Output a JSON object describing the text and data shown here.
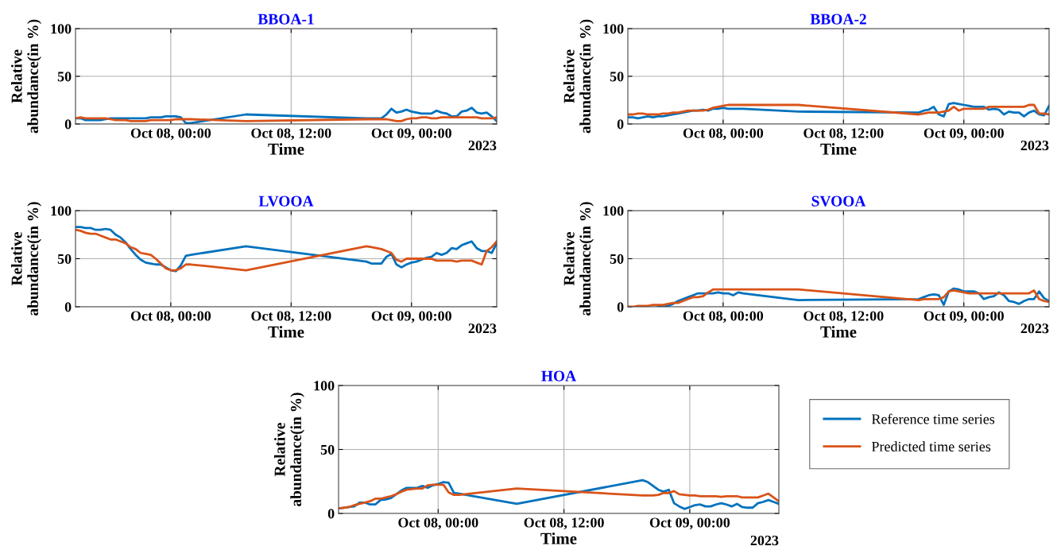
{
  "chart_data": [
    {
      "type": "line",
      "title": "BBOA-1",
      "xlabel": "Time",
      "ylabel": "Relative\nabundance(in %)",
      "annotations": [
        "2023"
      ],
      "x": [
        "2023-10-07T14:30",
        "2023-10-07T15:00",
        "2023-10-07T15:30",
        "2023-10-07T16:00",
        "2023-10-07T16:30",
        "2023-10-07T17:00",
        "2023-10-07T17:30",
        "2023-10-07T18:00",
        "2023-10-07T18:30",
        "2023-10-07T19:00",
        "2023-10-07T19:30",
        "2023-10-07T20:00",
        "2023-10-07T20:30",
        "2023-10-07T21:00",
        "2023-10-07T21:30",
        "2023-10-07T22:00",
        "2023-10-07T22:30",
        "2023-10-07T23:00",
        "2023-10-07T23:30",
        "2023-10-08T00:00",
        "2023-10-08T00:30",
        "2023-10-08T01:00",
        "2023-10-08T01:30",
        "2023-10-08T02:00",
        "2023-10-08T07:30",
        "2023-10-08T19:30",
        "2023-10-08T20:00",
        "2023-10-08T20:30",
        "2023-10-08T21:00",
        "2023-10-08T21:30",
        "2023-10-08T22:00",
        "2023-10-08T22:30",
        "2023-10-08T23:00",
        "2023-10-08T23:30",
        "2023-10-09T00:00",
        "2023-10-09T00:30",
        "2023-10-09T01:00",
        "2023-10-09T01:30",
        "2023-10-09T02:00",
        "2023-10-09T02:30",
        "2023-10-09T03:00",
        "2023-10-09T03:30",
        "2023-10-09T04:00",
        "2023-10-09T04:30",
        "2023-10-09T05:00",
        "2023-10-09T05:30",
        "2023-10-09T06:00",
        "2023-10-09T06:30",
        "2023-10-09T07:00",
        "2023-10-09T07:30",
        "2023-10-09T08:00",
        "2023-10-09T08:30"
      ],
      "series": [
        {
          "color": "#0072bd",
          "values": [
            6,
            6,
            4,
            4,
            4,
            4,
            5,
            6,
            6,
            6,
            6,
            6,
            6,
            6,
            6,
            7,
            7,
            7,
            8,
            8,
            8,
            7,
            1,
            1,
            10,
            6,
            6,
            6,
            6,
            10,
            16,
            12,
            13,
            15,
            13,
            12,
            11,
            11,
            11,
            14,
            12,
            11,
            8,
            8,
            13,
            14,
            17,
            12,
            11,
            12,
            8,
            3
          ]
        },
        {
          "color": "#d95319",
          "values": [
            6,
            7,
            6,
            6,
            6,
            6,
            6,
            5,
            4,
            4,
            4,
            3,
            3,
            3,
            3,
            4,
            4,
            4,
            4,
            4,
            5,
            5,
            5,
            5,
            3,
            5,
            5,
            5,
            5,
            5,
            4,
            3,
            3,
            5,
            6,
            6,
            7,
            7,
            6,
            6,
            7,
            7,
            7,
            7,
            7,
            7,
            7,
            7,
            6,
            6,
            6,
            7
          ]
        }
      ],
      "xlim": [
        "2023-10-07T14:30",
        "2023-10-09T08:30"
      ],
      "xticks": [
        {
          "value": "2023-10-08T00:00",
          "label": "Oct 08, 00:00"
        },
        {
          "value": "2023-10-08T12:00",
          "label": "Oct 08, 12:00"
        },
        {
          "value": "2023-10-09T00:00",
          "label": "Oct 09, 00:00"
        }
      ],
      "ylim": [
        0,
        100
      ],
      "yticks": [
        0,
        50,
        100
      ],
      "grid": true
    },
    {
      "type": "line",
      "title": "BBOA-2",
      "xlabel": "Time",
      "ylabel": "Relative\nabundance(in %)",
      "annotations": [
        "2023"
      ],
      "x": [
        "2023-10-07T14:30",
        "2023-10-07T15:00",
        "2023-10-07T15:30",
        "2023-10-07T16:00",
        "2023-10-07T16:30",
        "2023-10-07T17:00",
        "2023-10-07T17:30",
        "2023-10-07T18:00",
        "2023-10-07T18:30",
        "2023-10-07T19:00",
        "2023-10-07T19:30",
        "2023-10-07T20:00",
        "2023-10-07T20:30",
        "2023-10-07T21:00",
        "2023-10-07T21:30",
        "2023-10-07T22:00",
        "2023-10-07T22:30",
        "2023-10-07T23:00",
        "2023-10-07T23:30",
        "2023-10-08T00:00",
        "2023-10-08T00:30",
        "2023-10-08T01:00",
        "2023-10-08T01:30",
        "2023-10-08T02:00",
        "2023-10-08T07:30",
        "2023-10-08T19:30",
        "2023-10-08T20:00",
        "2023-10-08T20:30",
        "2023-10-08T21:00",
        "2023-10-08T21:30",
        "2023-10-08T22:00",
        "2023-10-08T22:30",
        "2023-10-08T23:00",
        "2023-10-08T23:30",
        "2023-10-09T00:00",
        "2023-10-09T00:30",
        "2023-10-09T01:00",
        "2023-10-09T01:30",
        "2023-10-09T02:00",
        "2023-10-09T02:30",
        "2023-10-09T03:00",
        "2023-10-09T03:30",
        "2023-10-09T04:00",
        "2023-10-09T04:30",
        "2023-10-09T05:00",
        "2023-10-09T05:30",
        "2023-10-09T06:00",
        "2023-10-09T06:30",
        "2023-10-09T07:00",
        "2023-10-09T07:30",
        "2023-10-09T08:00",
        "2023-10-09T08:30"
      ],
      "series": [
        {
          "color": "#0072bd",
          "values": [
            7,
            7,
            6,
            7,
            8,
            7,
            8,
            8,
            9,
            10,
            11,
            12,
            13,
            14,
            14,
            15,
            14,
            16,
            16,
            17,
            16,
            16,
            16,
            16,
            13,
            12,
            14,
            15,
            18,
            10,
            8,
            21,
            22,
            21,
            20,
            19,
            18,
            18,
            18,
            15,
            16,
            15,
            10,
            13,
            12,
            12,
            8,
            12,
            14,
            10,
            9,
            19
          ]
        },
        {
          "color": "#d95319",
          "values": [
            10,
            10,
            11,
            11,
            10,
            10,
            10,
            11,
            11,
            12,
            12,
            13,
            14,
            14,
            14,
            14,
            15,
            17,
            18,
            19,
            20,
            20,
            20,
            20,
            20,
            10,
            11,
            12,
            12,
            12,
            13,
            14,
            18,
            14,
            16,
            16,
            16,
            16,
            16,
            18,
            18,
            18,
            18,
            18,
            18,
            18,
            18,
            20,
            20,
            11,
            11,
            10
          ]
        }
      ],
      "xlim": [
        "2023-10-07T14:30",
        "2023-10-09T08:30"
      ],
      "xticks": [
        {
          "value": "2023-10-08T00:00",
          "label": "Oct 08, 00:00"
        },
        {
          "value": "2023-10-08T12:00",
          "label": "Oct 08, 12:00"
        },
        {
          "value": "2023-10-09T00:00",
          "label": "Oct 09, 00:00"
        }
      ],
      "ylim": [
        0,
        100
      ],
      "yticks": [
        0,
        50,
        100
      ],
      "grid": true
    },
    {
      "type": "line",
      "title": "LVOOA",
      "xlabel": "Time",
      "ylabel": "Relative\nabundance(in %)",
      "annotations": [
        "2023"
      ],
      "x": [
        "2023-10-07T14:30",
        "2023-10-07T15:00",
        "2023-10-07T15:30",
        "2023-10-07T16:00",
        "2023-10-07T16:30",
        "2023-10-07T17:00",
        "2023-10-07T17:30",
        "2023-10-07T18:00",
        "2023-10-07T18:30",
        "2023-10-07T19:00",
        "2023-10-07T19:30",
        "2023-10-07T20:00",
        "2023-10-07T20:30",
        "2023-10-07T21:00",
        "2023-10-07T21:30",
        "2023-10-07T22:00",
        "2023-10-07T22:30",
        "2023-10-07T23:00",
        "2023-10-07T23:30",
        "2023-10-08T00:00",
        "2023-10-08T00:30",
        "2023-10-08T01:00",
        "2023-10-08T01:30",
        "2023-10-08T02:00",
        "2023-10-08T07:30",
        "2023-10-08T19:30",
        "2023-10-08T20:00",
        "2023-10-08T20:30",
        "2023-10-08T21:00",
        "2023-10-08T21:30",
        "2023-10-08T22:00",
        "2023-10-08T22:30",
        "2023-10-08T23:00",
        "2023-10-08T23:30",
        "2023-10-09T00:00",
        "2023-10-09T00:30",
        "2023-10-09T01:00",
        "2023-10-09T01:30",
        "2023-10-09T02:00",
        "2023-10-09T02:30",
        "2023-10-09T03:00",
        "2023-10-09T03:30",
        "2023-10-09T04:00",
        "2023-10-09T04:30",
        "2023-10-09T05:00",
        "2023-10-09T05:30",
        "2023-10-09T06:00",
        "2023-10-09T06:30",
        "2023-10-09T07:00",
        "2023-10-09T07:30",
        "2023-10-09T08:00",
        "2023-10-09T08:30"
      ],
      "series": [
        {
          "color": "#0072bd",
          "values": [
            83,
            83,
            82,
            82,
            80,
            80,
            81,
            80,
            75,
            72,
            67,
            60,
            54,
            49,
            46,
            45,
            44,
            44,
            41,
            38,
            37,
            43,
            53,
            54,
            63,
            47,
            45,
            45,
            45,
            52,
            55,
            44,
            41,
            44,
            46,
            47,
            49,
            51,
            52,
            56,
            54,
            56,
            61,
            60,
            64,
            66,
            68,
            61,
            58,
            58,
            56,
            66
          ]
        },
        {
          "color": "#d95319",
          "values": [
            80,
            79,
            77,
            76,
            76,
            74,
            72,
            70,
            70,
            68,
            66,
            62,
            60,
            56,
            55,
            54,
            50,
            45,
            40,
            38,
            38,
            40,
            44,
            44,
            38,
            63,
            62,
            61,
            60,
            58,
            56,
            49,
            47,
            50,
            50,
            50,
            50,
            50,
            50,
            48,
            48,
            48,
            48,
            47,
            48,
            48,
            48,
            46,
            44,
            58,
            62,
            68
          ]
        }
      ],
      "xlim": [
        "2023-10-07T14:30",
        "2023-10-09T08:30"
      ],
      "xticks": [
        {
          "value": "2023-10-08T00:00",
          "label": "Oct 08, 00:00"
        },
        {
          "value": "2023-10-08T12:00",
          "label": "Oct 08, 12:00"
        },
        {
          "value": "2023-10-09T00:00",
          "label": "Oct 09, 00:00"
        }
      ],
      "ylim": [
        0,
        100
      ],
      "yticks": [
        0,
        50,
        100
      ],
      "grid": true
    },
    {
      "type": "line",
      "title": "SVOOA",
      "xlabel": "Time",
      "ylabel": "Relative\nabundance(in %)",
      "annotations": [
        "2023"
      ],
      "x": [
        "2023-10-07T14:30",
        "2023-10-07T15:00",
        "2023-10-07T15:30",
        "2023-10-07T16:00",
        "2023-10-07T16:30",
        "2023-10-07T17:00",
        "2023-10-07T17:30",
        "2023-10-07T18:00",
        "2023-10-07T18:30",
        "2023-10-07T19:00",
        "2023-10-07T19:30",
        "2023-10-07T20:00",
        "2023-10-07T20:30",
        "2023-10-07T21:00",
        "2023-10-07T21:30",
        "2023-10-07T22:00",
        "2023-10-07T22:30",
        "2023-10-07T23:00",
        "2023-10-07T23:30",
        "2023-10-08T00:00",
        "2023-10-08T00:30",
        "2023-10-08T01:00",
        "2023-10-08T01:30",
        "2023-10-08T02:00",
        "2023-10-08T07:30",
        "2023-10-08T19:30",
        "2023-10-08T20:00",
        "2023-10-08T20:30",
        "2023-10-08T21:00",
        "2023-10-08T21:30",
        "2023-10-08T22:00",
        "2023-10-08T22:30",
        "2023-10-08T23:00",
        "2023-10-08T23:30",
        "2023-10-09T00:00",
        "2023-10-09T00:30",
        "2023-10-09T01:00",
        "2023-10-09T01:30",
        "2023-10-09T02:00",
        "2023-10-09T02:30",
        "2023-10-09T03:00",
        "2023-10-09T03:30",
        "2023-10-09T04:00",
        "2023-10-09T04:30",
        "2023-10-09T05:00",
        "2023-10-09T05:30",
        "2023-10-09T06:00",
        "2023-10-09T06:30",
        "2023-10-09T07:00",
        "2023-10-09T07:30",
        "2023-10-09T08:00",
        "2023-10-09T08:30"
      ],
      "series": [
        {
          "color": "#0072bd",
          "values": [
            null,
            null,
            null,
            null,
            null,
            null,
            0,
            0,
            1,
            3,
            6,
            8,
            10,
            12,
            14,
            14,
            14,
            14,
            15,
            14,
            14,
            12,
            15,
            14,
            7,
            8,
            10,
            12,
            13,
            12,
            2,
            16,
            19,
            18,
            16,
            16,
            16,
            14,
            8,
            10,
            11,
            15,
            12,
            6,
            5,
            3,
            6,
            8,
            8,
            16,
            9,
            6
          ]
        },
        {
          "color": "#d95319",
          "values": [
            0,
            0,
            1,
            1,
            1,
            2,
            2,
            2,
            3,
            4,
            4,
            6,
            8,
            10,
            10,
            11,
            15,
            18,
            18,
            18,
            18,
            18,
            18,
            18,
            18,
            7,
            8,
            8,
            8,
            8,
            10,
            16,
            17,
            16,
            15,
            14,
            14,
            14,
            14,
            14,
            14,
            14,
            14,
            14,
            14,
            14,
            14,
            14,
            17,
            8,
            6,
            5
          ]
        }
      ],
      "xlim": [
        "2023-10-07T14:30",
        "2023-10-09T08:30"
      ],
      "xticks": [
        {
          "value": "2023-10-08T00:00",
          "label": "Oct 08, 00:00"
        },
        {
          "value": "2023-10-08T12:00",
          "label": "Oct 08, 12:00"
        },
        {
          "value": "2023-10-09T00:00",
          "label": "Oct 09, 00:00"
        }
      ],
      "ylim": [
        0,
        100
      ],
      "yticks": [
        0,
        50,
        100
      ],
      "grid": true
    },
    {
      "type": "line",
      "title": "HOA",
      "xlabel": "Time",
      "ylabel": "Relative\nabundance(in %)",
      "annotations": [
        "2023"
      ],
      "legend": "right",
      "x": [
        "2023-10-07T14:30",
        "2023-10-07T15:00",
        "2023-10-07T15:30",
        "2023-10-07T16:00",
        "2023-10-07T16:30",
        "2023-10-07T17:00",
        "2023-10-07T17:30",
        "2023-10-07T18:00",
        "2023-10-07T18:30",
        "2023-10-07T19:00",
        "2023-10-07T19:30",
        "2023-10-07T20:00",
        "2023-10-07T20:30",
        "2023-10-07T21:00",
        "2023-10-07T21:30",
        "2023-10-07T22:00",
        "2023-10-07T22:30",
        "2023-10-07T23:00",
        "2023-10-07T23:30",
        "2023-10-08T00:00",
        "2023-10-08T00:30",
        "2023-10-08T01:00",
        "2023-10-08T01:30",
        "2023-10-08T02:00",
        "2023-10-08T07:30",
        "2023-10-08T19:30",
        "2023-10-08T20:00",
        "2023-10-08T20:30",
        "2023-10-08T21:00",
        "2023-10-08T21:30",
        "2023-10-08T22:00",
        "2023-10-08T22:30",
        "2023-10-08T23:00",
        "2023-10-08T23:30",
        "2023-10-09T00:00",
        "2023-10-09T00:30",
        "2023-10-09T01:00",
        "2023-10-09T01:30",
        "2023-10-09T02:00",
        "2023-10-09T02:30",
        "2023-10-09T03:00",
        "2023-10-09T03:30",
        "2023-10-09T04:00",
        "2023-10-09T04:30",
        "2023-10-09T05:00",
        "2023-10-09T05:30",
        "2023-10-09T06:00",
        "2023-10-09T06:30",
        "2023-10-09T07:00",
        "2023-10-09T07:30",
        "2023-10-09T08:00",
        "2023-10-09T08:30"
      ],
      "series": [
        {
          "name": "Reference time series",
          "color": "#0072bd",
          "values": [
            4,
            4.5,
            5,
            5.5,
            8.5,
            8.5,
            7,
            7,
            10.5,
            11,
            12,
            15,
            18,
            20,
            20,
            20,
            21.5,
            20,
            22,
            23,
            24.5,
            24,
            16,
            15.5,
            7.5,
            26,
            24.5,
            21.5,
            18.5,
            17,
            18.5,
            8,
            5.5,
            3.5,
            5,
            6.5,
            7,
            5.5,
            5.5,
            7,
            8,
            7,
            5.5,
            7.5,
            5,
            4.5,
            4.5,
            8,
            9,
            10.5,
            9,
            7.5
          ]
        },
        {
          "name": "Predicted time series",
          "color": "#d95319",
          "values": [
            4,
            4.5,
            5,
            6.5,
            7.5,
            8.5,
            9.5,
            11.5,
            11.5,
            12.5,
            13.5,
            15,
            17,
            18.5,
            19,
            19.5,
            19.5,
            22,
            22.5,
            22.5,
            22.5,
            16.5,
            14.5,
            14.5,
            19.5,
            14,
            14,
            14,
            14.5,
            16,
            16,
            17.5,
            15,
            14.5,
            14,
            14,
            13.5,
            13.5,
            13.5,
            13.5,
            13,
            13.5,
            13.5,
            13.5,
            12.5,
            12.5,
            12.5,
            12.5,
            14,
            15.5,
            12.5,
            9.5
          ]
        }
      ],
      "xlim": [
        "2023-10-07T14:30",
        "2023-10-09T08:30"
      ],
      "xticks": [
        {
          "value": "2023-10-08T00:00",
          "label": "Oct 08, 00:00"
        },
        {
          "value": "2023-10-08T12:00",
          "label": "Oct 08, 12:00"
        },
        {
          "value": "2023-10-09T00:00",
          "label": "Oct 09, 00:00"
        }
      ],
      "ylim": [
        0,
        100
      ],
      "yticks": [
        0,
        50,
        100
      ],
      "grid": true
    }
  ]
}
